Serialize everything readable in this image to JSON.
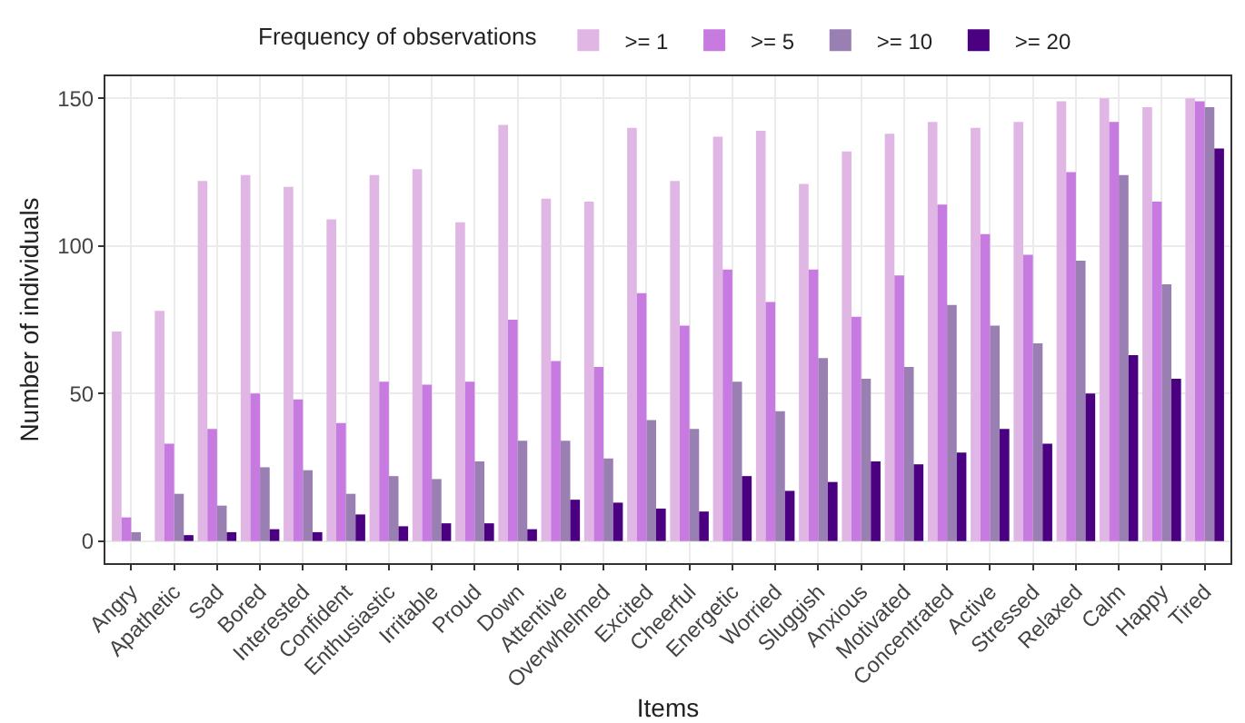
{
  "chart_data": {
    "type": "bar",
    "xlabel": "Items",
    "ylabel": "Number of individuals",
    "legend_title": "Frequency of observations",
    "legend": "top",
    "categories": [
      "Angry",
      "Apathetic",
      "Sad",
      "Bored",
      "Interested",
      "Confident",
      "Enthusiastic",
      "Irritable",
      "Proud",
      "Down",
      "Attentive",
      "Overwhelmed",
      "Excited",
      "Cheerful",
      "Energetic",
      "Worried",
      "Sluggish",
      "Anxious",
      "Motivated",
      "Concentrated",
      "Active",
      "Stressed",
      "Relaxed",
      "Calm",
      "Happy",
      "Tired"
    ],
    "series": [
      {
        "name": ">= 1",
        "color": "#e0b6e4",
        "values": [
          71,
          78,
          122,
          124,
          120,
          109,
          124,
          126,
          108,
          141,
          116,
          115,
          140,
          122,
          137,
          139,
          121,
          132,
          138,
          142,
          140,
          142,
          149,
          150,
          147,
          150
        ]
      },
      {
        "name": ">= 5",
        "color": "#c77ae0",
        "values": [
          8,
          33,
          38,
          50,
          48,
          40,
          54,
          53,
          54,
          75,
          61,
          59,
          84,
          73,
          92,
          81,
          92,
          76,
          90,
          114,
          104,
          97,
          125,
          142,
          115,
          149
        ]
      },
      {
        "name": ">= 10",
        "color": "#9a7fb2",
        "values": [
          3,
          16,
          12,
          25,
          24,
          16,
          22,
          21,
          27,
          34,
          34,
          28,
          41,
          38,
          54,
          44,
          62,
          55,
          59,
          80,
          73,
          67,
          95,
          124,
          87,
          147
        ]
      },
      {
        "name": ">= 20",
        "color": "#4b0082",
        "values": [
          0,
          2,
          3,
          4,
          3,
          9,
          5,
          6,
          6,
          4,
          14,
          13,
          11,
          10,
          22,
          17,
          20,
          27,
          26,
          30,
          38,
          33,
          50,
          63,
          55,
          133
        ]
      }
    ],
    "ylim": [
      -7.5,
      157.5
    ],
    "yticks": [
      0,
      50,
      100,
      150
    ],
    "grid": true
  }
}
